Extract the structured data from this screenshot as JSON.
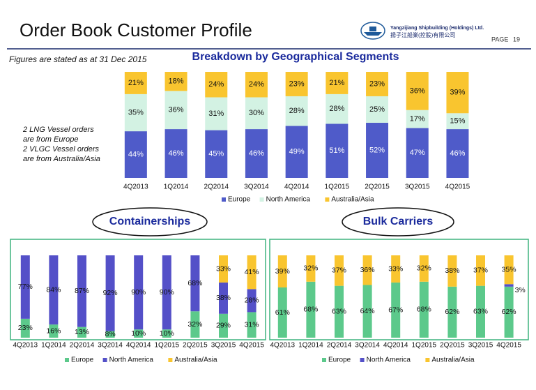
{
  "header": {
    "title": "Order Book Customer Profile",
    "company": "Yangzijiang Shipbuilding (Holdings) Ltd.",
    "company_cn": "揚子江船業(控股)有限公司",
    "page_label": "PAGE",
    "page_number": "19",
    "note": "Figures are stated as at 31 Dec 2015"
  },
  "chart_data": [
    {
      "type": "stacked_bar",
      "title": "Breakdown by Geographical Segments",
      "annotations": [
        "2 LNG Vessel orders",
        "are from Europe",
        "2 VLGC Vessel orders",
        "are from Australia/Asia"
      ],
      "categories": [
        "4Q2013",
        "1Q2014",
        "2Q2014",
        "3Q2014",
        "4Q2014",
        "1Q2015",
        "2Q2015",
        "3Q2015",
        "4Q2015"
      ],
      "ylim": [
        0,
        100
      ],
      "legend": "bottom",
      "series": [
        {
          "name": "Europe",
          "color": "#4f5bc9",
          "values": [
            44,
            46,
            45,
            46,
            49,
            51,
            52,
            47,
            46
          ],
          "value_labels": [
            "44%",
            "46%",
            "45%",
            "46%",
            "49%",
            "51%",
            "52%",
            "47%",
            "46%"
          ]
        },
        {
          "name": "North America",
          "color": "#d3f2e3",
          "values": [
            35,
            36,
            31,
            30,
            28,
            28,
            25,
            17,
            15
          ],
          "value_labels": [
            "35%",
            "36%",
            "31%",
            "30%",
            "28%",
            "28%",
            "25%",
            "17%",
            "15%"
          ]
        },
        {
          "name": "Australia/Asia",
          "color": "#f9c52f",
          "values": [
            21,
            18,
            24,
            24,
            23,
            21,
            23,
            36,
            39
          ],
          "value_labels": [
            "21%",
            "18%",
            "24%",
            "24%",
            "23%",
            "21%",
            "23%",
            "36%",
            "39%"
          ]
        }
      ]
    },
    {
      "type": "stacked_bar",
      "title": "Containerships",
      "categories": [
        "4Q2013",
        "1Q2014",
        "2Q2014",
        "3Q2014",
        "4Q2014",
        "1Q2015",
        "2Q2015",
        "3Q2015",
        "4Q2015"
      ],
      "ylim": [
        0,
        100
      ],
      "legend": "bottom",
      "series": [
        {
          "name": "Europe",
          "color": "#5cc98b",
          "values": [
            23,
            16,
            13,
            8,
            10,
            10,
            32,
            29,
            31
          ],
          "value_labels": [
            "23%",
            "16%",
            "13%",
            "8%",
            "10%",
            "10%",
            "32%",
            "29%",
            "31%"
          ]
        },
        {
          "name": "North America",
          "color": "#5450c8",
          "values": [
            77,
            84,
            87,
            92,
            90,
            90,
            68,
            38,
            28
          ],
          "value_labels": [
            "77%",
            "84%",
            "87%",
            "92%",
            "90%",
            "90%",
            "68%",
            "38%",
            "28%"
          ]
        },
        {
          "name": "Australia/Asia",
          "color": "#f9c52f",
          "values": [
            null,
            null,
            null,
            null,
            null,
            null,
            null,
            33,
            41
          ],
          "value_labels": [
            null,
            null,
            null,
            null,
            null,
            null,
            null,
            "33%",
            "41%"
          ]
        }
      ]
    },
    {
      "type": "stacked_bar",
      "title": "Bulk Carriers",
      "categories": [
        "4Q2013",
        "1Q2014",
        "2Q2014",
        "3Q2014",
        "4Q2014",
        "1Q2015",
        "2Q2015",
        "3Q2015",
        "4Q2015"
      ],
      "ylim": [
        0,
        100
      ],
      "legend": "bottom",
      "series": [
        {
          "name": "Europe",
          "color": "#5cc98b",
          "values": [
            61,
            68,
            63,
            64,
            67,
            68,
            62,
            63,
            62
          ],
          "value_labels": [
            "61%",
            "68%",
            "63%",
            "64%",
            "67%",
            "68%",
            "62%",
            "63%",
            "62%"
          ]
        },
        {
          "name": "North America",
          "color": "#5450c8",
          "values": [
            null,
            null,
            null,
            null,
            null,
            null,
            null,
            null,
            3
          ],
          "value_labels": [
            null,
            null,
            null,
            null,
            null,
            null,
            null,
            null,
            "3%"
          ]
        },
        {
          "name": "Australia/Asia",
          "color": "#f9c52f",
          "values": [
            39,
            32,
            37,
            36,
            33,
            32,
            38,
            37,
            35
          ],
          "value_labels": [
            "39%",
            "32%",
            "37%",
            "36%",
            "33%",
            "32%",
            "38%",
            "37%",
            "35%"
          ]
        }
      ]
    }
  ]
}
